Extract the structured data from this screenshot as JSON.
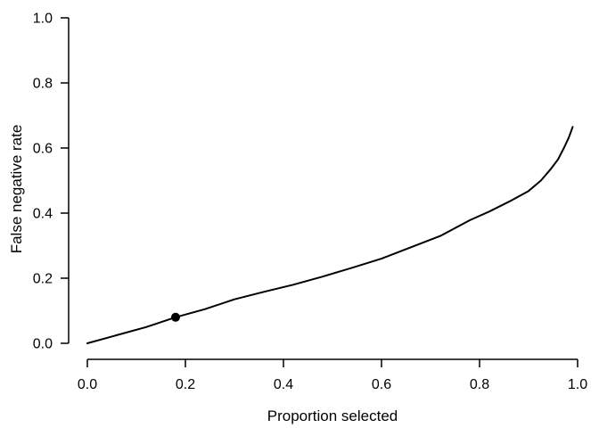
{
  "chart_data": {
    "type": "line",
    "title": "",
    "xlabel": "Proportion selected",
    "ylabel": "False negative rate",
    "xlim": [
      0.0,
      1.0
    ],
    "ylim": [
      0.0,
      1.0
    ],
    "grid": false,
    "legend": "none",
    "background_color": "#ffffff",
    "axis_color": "#000000",
    "x_ticks": [
      0.0,
      0.2,
      0.4,
      0.6,
      0.8,
      1.0
    ],
    "x_tick_labels": [
      "0.0",
      "0.2",
      "0.4",
      "0.6",
      "0.8",
      "1.0"
    ],
    "y_ticks": [
      0.0,
      0.2,
      0.4,
      0.6,
      0.8,
      1.0
    ],
    "y_tick_labels": [
      "0.0",
      "0.2",
      "0.4",
      "0.6",
      "0.8",
      "1.0"
    ],
    "series": [
      {
        "name": "false-negative-rate-curve",
        "color": "#000000",
        "line_width": 2,
        "x": [
          0.0,
          0.06,
          0.12,
          0.18,
          0.24,
          0.3,
          0.36,
          0.42,
          0.48,
          0.54,
          0.6,
          0.66,
          0.72,
          0.78,
          0.82,
          0.86,
          0.9,
          0.925,
          0.945,
          0.96,
          0.972,
          0.982,
          0.99
        ],
        "y": [
          0.0,
          0.025,
          0.05,
          0.08,
          0.105,
          0.135,
          0.158,
          0.18,
          0.205,
          0.232,
          0.26,
          0.295,
          0.33,
          0.378,
          0.405,
          0.435,
          0.468,
          0.5,
          0.535,
          0.565,
          0.6,
          0.632,
          0.665
        ]
      }
    ],
    "marked_point": {
      "x": 0.18,
      "y": 0.08,
      "color": "#000000",
      "radius_px": 5
    }
  }
}
